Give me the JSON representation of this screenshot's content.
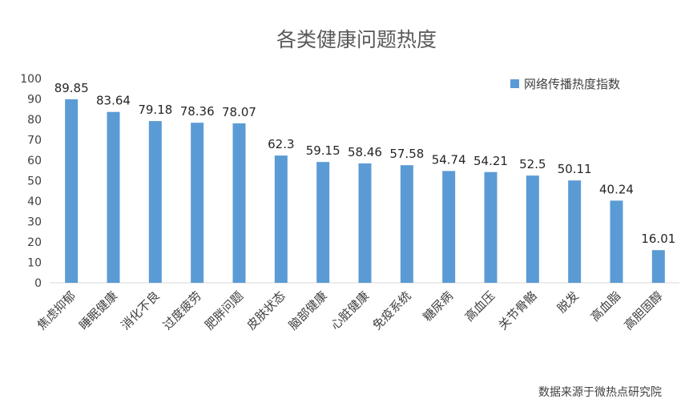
{
  "chart_data": {
    "type": "bar",
    "title": "各类健康问题热度",
    "categories": [
      "焦虑抑郁",
      "睡眠健康",
      "消化不良",
      "过度疲劳",
      "肥胖问题",
      "皮肤状态",
      "脑部健康",
      "心脏健康",
      "免疫系统",
      "糖尿病",
      "高血压",
      "关节骨骼",
      "脱发",
      "高血脂",
      "高胆固醇"
    ],
    "series": [
      {
        "name": "网络传播热度指数",
        "values": [
          89.85,
          83.64,
          79.18,
          78.36,
          78.07,
          62.3,
          59.15,
          58.46,
          57.58,
          54.74,
          54.21,
          52.5,
          50.11,
          40.24,
          16.01
        ]
      }
    ],
    "data_labels": [
      "89.85",
      "83.64",
      "79.18",
      "78.36",
      "78.07",
      "62.3",
      "59.15",
      "58.46",
      "57.58",
      "54.74",
      "54.21",
      "52.5",
      "50.11",
      "40.24",
      "16.01"
    ],
    "ylim": [
      0,
      100
    ],
    "yticks": [
      "0",
      "10",
      "20",
      "30",
      "40",
      "50",
      "60",
      "70",
      "80",
      "90",
      "100"
    ],
    "grid": false,
    "legend_position": "top-right",
    "bar_color": "#5b9bd5",
    "source": "数据来源于微热点研究院"
  }
}
